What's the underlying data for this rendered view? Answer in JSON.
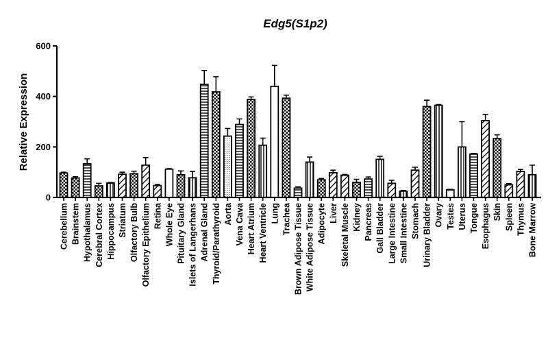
{
  "chart_data": {
    "type": "bar",
    "title": "Edg5(S1p2)",
    "xlabel": "",
    "ylabel": "Relative Expression",
    "ylim": [
      0,
      600
    ],
    "yticks": [
      0,
      200,
      400,
      600
    ],
    "grid": false,
    "legend": "none",
    "categories": [
      "Cerebellum",
      "Brainstem",
      "Hypothalamus",
      "Cerebral Cortex",
      "Hippocampus",
      "Striatum",
      "Olfactory Bulb",
      "Olfactory Epithelium",
      "Retina",
      "Whole Eye",
      "Pituitary Gland",
      "Islets of Langerhans",
      "Adrenal Gland",
      "Thyroid/Parathyroid",
      "Aorta",
      "Vena Cava",
      "Heart Atrium",
      "Heart Ventricle",
      "Lung",
      "Trachea",
      "Brown Adipose Tissue",
      "White Adipose Tissue",
      "Adipocyte",
      "Liver",
      "Skeletal Muscle",
      "Kidney",
      "Pancreas",
      "Gall Bladder",
      "Large Intestine",
      "Small Intestine",
      "Stomach",
      "Urinary Bladder",
      "Ovary",
      "Testes",
      "Uterus",
      "Tongue",
      "Esophagus",
      "Skin",
      "Spleen",
      "Thymus",
      "Bone Marrow"
    ],
    "values": [
      97,
      77,
      133,
      46,
      57,
      92,
      94,
      128,
      47,
      112,
      90,
      78,
      448,
      418,
      243,
      289,
      388,
      207,
      440,
      393,
      37,
      140,
      70,
      98,
      88,
      60,
      73,
      151,
      56,
      25,
      108,
      360,
      365,
      30,
      200,
      172,
      304,
      233,
      50,
      103,
      90
    ],
    "error": [
      3,
      5,
      20,
      10,
      2,
      8,
      10,
      30,
      5,
      2,
      15,
      25,
      55,
      60,
      30,
      22,
      10,
      28,
      83,
      12,
      5,
      20,
      5,
      10,
      3,
      12,
      8,
      12,
      12,
      3,
      12,
      25,
      3,
      2,
      100,
      2,
      25,
      15,
      5,
      8,
      38
    ],
    "patterns": [
      "check",
      "check",
      "hlines",
      "check",
      "vlines",
      "diag",
      "check",
      "diag",
      "diag",
      "white",
      "check",
      "vlines",
      "hlines",
      "check",
      "dots",
      "hlines",
      "check",
      "vlines",
      "white",
      "check",
      "hlines",
      "vlines",
      "check",
      "diag",
      "diag",
      "check",
      "hlines",
      "vlines",
      "diag",
      "vlines",
      "diag",
      "check",
      "vlines",
      "white",
      "vlines",
      "hlines",
      "diag",
      "check",
      "diag",
      "diag",
      "vlines"
    ]
  }
}
